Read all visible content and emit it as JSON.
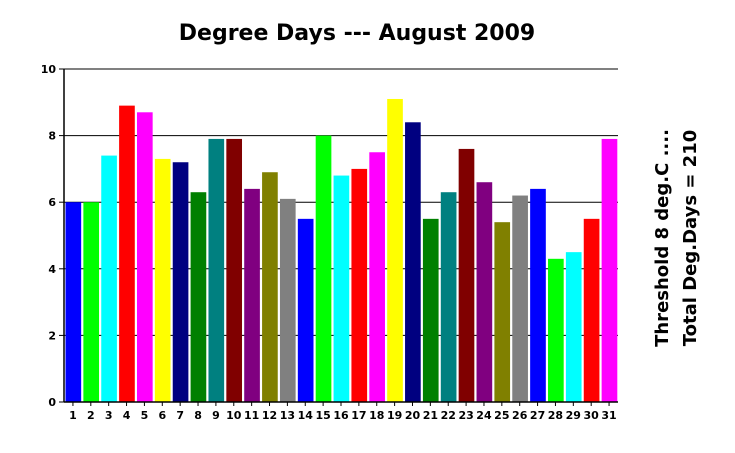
{
  "chart_data": {
    "type": "bar",
    "title": "Degree Days --- August 2009",
    "xlabel": "",
    "ylabel": "",
    "ylim": [
      0,
      10
    ],
    "yticks": [
      0,
      2,
      4,
      6,
      8,
      10
    ],
    "grid": "horizontal",
    "legend": "none",
    "categories": [
      "1",
      "2",
      "3",
      "4",
      "5",
      "6",
      "7",
      "8",
      "9",
      "10",
      "11",
      "12",
      "13",
      "14",
      "15",
      "16",
      "17",
      "18",
      "19",
      "20",
      "21",
      "22",
      "23",
      "24",
      "25",
      "26",
      "27",
      "28",
      "29",
      "30",
      "31"
    ],
    "values": [
      6.0,
      6.0,
      7.4,
      8.9,
      8.7,
      7.3,
      7.2,
      6.3,
      7.9,
      7.9,
      6.4,
      6.9,
      6.1,
      5.5,
      8.0,
      6.8,
      7.0,
      7.5,
      9.1,
      8.4,
      5.5,
      6.3,
      7.6,
      6.6,
      5.4,
      6.2,
      6.4,
      4.3,
      4.5,
      5.5,
      7.9
    ],
    "bar_colors": [
      "#0000ff",
      "#00ff00",
      "#00ffff",
      "#ff0000",
      "#ff00ff",
      "#ffff00",
      "#000080",
      "#008000",
      "#008080",
      "#800000",
      "#800080",
      "#808000",
      "#808080",
      "#0000ff",
      "#00ff00",
      "#00ffff",
      "#ff0000",
      "#ff00ff",
      "#ffff00",
      "#000080",
      "#008000",
      "#008080",
      "#800000",
      "#800080",
      "#808000",
      "#808080",
      "#0000ff",
      "#00ff00",
      "#00ffff",
      "#ff0000",
      "#ff00ff"
    ],
    "annotations": [
      "Threshold 8 deg.C ....",
      "Total Deg.Days = 210"
    ]
  }
}
